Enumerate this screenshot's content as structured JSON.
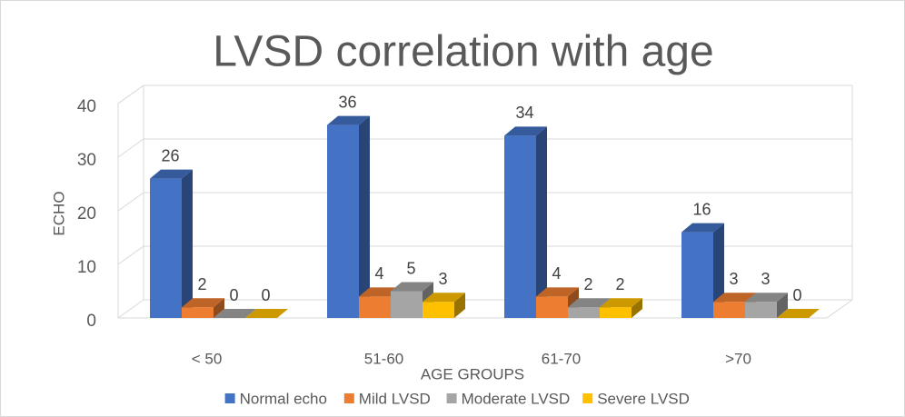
{
  "chart_data": {
    "type": "bar3d",
    "title": "LVSD correlation with age",
    "x_label": "AGE GROUPS",
    "y_label": "ECHO",
    "categories": [
      "< 50",
      "51-60",
      "61-70",
      ">70"
    ],
    "series": [
      {
        "name": "Normal echo",
        "color": "#4472c4",
        "values": [
          26,
          36,
          34,
          16
        ]
      },
      {
        "name": "Mild LVSD",
        "color": "#ed7d31",
        "values": [
          2,
          4,
          4,
          3
        ]
      },
      {
        "name": "Moderate LVSD",
        "color": "#a5a5a5",
        "values": [
          0,
          5,
          2,
          3
        ]
      },
      {
        "name": "Severe LVSD",
        "color": "#ffc000",
        "values": [
          0,
          3,
          2,
          0
        ]
      }
    ],
    "ylim": [
      0,
      40
    ],
    "yticks": [
      0,
      10,
      20,
      30,
      40
    ],
    "grid": true,
    "legend": "bottom"
  }
}
